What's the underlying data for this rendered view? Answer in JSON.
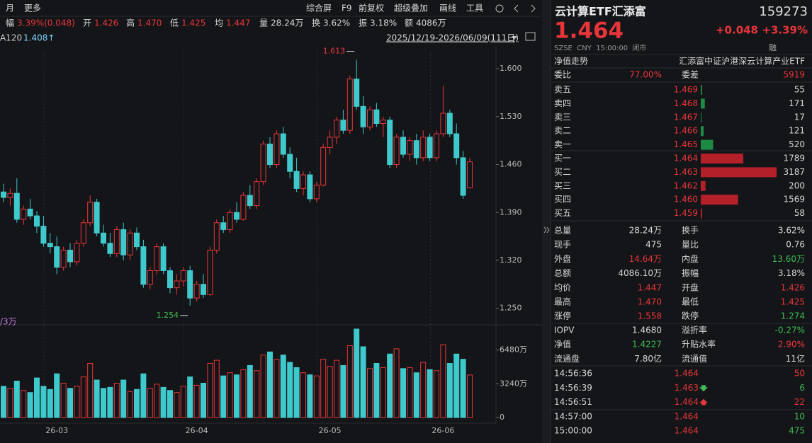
{
  "toolbar": {
    "left": [
      "月",
      "更多"
    ],
    "right": [
      "综合屏",
      "F9",
      "前复权",
      "超级叠加",
      "画线",
      "工具"
    ]
  },
  "quote_line": [
    {
      "label": "幅",
      "value": "3.39%(0.048)",
      "color": "#e8353a"
    },
    {
      "label": "开",
      "value": "1.426",
      "color": "#e8353a"
    },
    {
      "label": "高",
      "value": "1.470",
      "color": "#e8353a"
    },
    {
      "label": "低",
      "value": "1.425",
      "color": "#e8353a"
    },
    {
      "label": "均",
      "value": "1.447",
      "color": "#e8353a"
    },
    {
      "label": "量",
      "value": "28.24万",
      "color": "#d8d8d8"
    },
    {
      "label": "换",
      "value": "3.62%",
      "color": "#d8d8d8"
    },
    {
      "label": "振",
      "value": "3.18%",
      "color": "#d8d8d8"
    },
    {
      "label": "额",
      "value": "4086万",
      "color": "#d8d8d8"
    }
  ],
  "ma_label": {
    "name": "A120",
    "value": "1.408↑"
  },
  "range": "2025/12/19-2026/06/09(111日)",
  "volume_label": "/3万",
  "chart_data": {
    "type": "candlestick",
    "up_color": "#e8353a",
    "down_color": "#3ec9cc",
    "grid": false,
    "categories": [
      null,
      null,
      null,
      null,
      null,
      null,
      null,
      null,
      "26-03",
      null,
      null,
      null,
      null,
      null,
      null,
      null,
      null,
      null,
      null,
      null,
      null,
      null,
      null,
      null,
      null,
      null,
      null,
      null,
      null,
      "26-04",
      null,
      null,
      null,
      null,
      null,
      null,
      null,
      null,
      null,
      null,
      null,
      null,
      null,
      null,
      null,
      null,
      null,
      null,
      null,
      "26-05",
      null,
      null,
      null,
      null,
      null,
      null,
      null,
      null,
      null,
      null,
      null,
      null,
      null,
      null,
      null,
      null,
      "26-06",
      null,
      null,
      null,
      null
    ],
    "ohlc": [
      [
        1.42,
        1.432,
        1.405,
        1.412
      ],
      [
        1.412,
        1.425,
        1.4,
        1.418
      ],
      [
        1.418,
        1.44,
        1.375,
        1.38
      ],
      [
        1.38,
        1.4,
        1.372,
        1.395
      ],
      [
        1.395,
        1.41,
        1.38,
        1.385
      ],
      [
        1.385,
        1.392,
        1.36,
        1.37
      ],
      [
        1.37,
        1.385,
        1.34,
        1.345
      ],
      [
        1.345,
        1.36,
        1.33,
        1.34
      ],
      [
        1.34,
        1.355,
        1.3,
        1.31
      ],
      [
        1.31,
        1.34,
        1.305,
        1.335
      ],
      [
        1.335,
        1.345,
        1.31,
        1.318
      ],
      [
        1.318,
        1.35,
        1.312,
        1.345
      ],
      [
        1.345,
        1.38,
        1.34,
        1.375
      ],
      [
        1.375,
        1.415,
        1.37,
        1.405
      ],
      [
        1.405,
        1.41,
        1.355,
        1.36
      ],
      [
        1.36,
        1.372,
        1.34,
        1.345
      ],
      [
        1.345,
        1.36,
        1.325,
        1.33
      ],
      [
        1.33,
        1.37,
        1.325,
        1.365
      ],
      [
        1.365,
        1.375,
        1.32,
        1.328
      ],
      [
        1.328,
        1.365,
        1.32,
        1.36
      ],
      [
        1.36,
        1.368,
        1.335,
        1.34
      ],
      [
        1.34,
        1.35,
        1.28,
        1.285
      ],
      [
        1.285,
        1.31,
        1.278,
        1.305
      ],
      [
        1.305,
        1.345,
        1.3,
        1.34
      ],
      [
        1.34,
        1.345,
        1.3,
        1.305
      ],
      [
        1.305,
        1.31,
        1.272,
        1.28
      ],
      [
        1.28,
        1.3,
        1.27,
        1.29
      ],
      [
        1.29,
        1.31,
        1.282,
        1.305
      ],
      [
        1.305,
        1.312,
        1.254,
        1.265
      ],
      [
        1.265,
        1.29,
        1.26,
        1.285
      ],
      [
        1.285,
        1.3,
        1.265,
        1.27
      ],
      [
        1.27,
        1.34,
        1.268,
        1.335
      ],
      [
        1.335,
        1.38,
        1.33,
        1.375
      ],
      [
        1.375,
        1.385,
        1.36,
        1.365
      ],
      [
        1.365,
        1.395,
        1.36,
        1.39
      ],
      [
        1.39,
        1.405,
        1.375,
        1.38
      ],
      [
        1.38,
        1.42,
        1.378,
        1.415
      ],
      [
        1.415,
        1.43,
        1.395,
        1.4
      ],
      [
        1.4,
        1.44,
        1.395,
        1.435
      ],
      [
        1.435,
        1.495,
        1.43,
        1.49
      ],
      [
        1.49,
        1.5,
        1.455,
        1.46
      ],
      [
        1.46,
        1.51,
        1.455,
        1.505
      ],
      [
        1.505,
        1.515,
        1.47,
        1.475
      ],
      [
        1.475,
        1.485,
        1.44,
        1.45
      ],
      [
        1.45,
        1.47,
        1.42,
        1.425
      ],
      [
        1.425,
        1.45,
        1.415,
        1.445
      ],
      [
        1.445,
        1.45,
        1.405,
        1.41
      ],
      [
        1.41,
        1.435,
        1.405,
        1.43
      ],
      [
        1.43,
        1.49,
        1.428,
        1.485
      ],
      [
        1.485,
        1.51,
        1.475,
        1.5
      ],
      [
        1.5,
        1.53,
        1.49,
        1.525
      ],
      [
        1.525,
        1.54,
        1.505,
        1.51
      ],
      [
        1.51,
        1.59,
        1.505,
        1.585
      ],
      [
        1.585,
        1.613,
        1.54,
        1.545
      ],
      [
        1.545,
        1.56,
        1.505,
        1.515
      ],
      [
        1.515,
        1.545,
        1.51,
        1.54
      ],
      [
        1.54,
        1.55,
        1.515,
        1.52
      ],
      [
        1.52,
        1.53,
        1.5,
        1.525
      ],
      [
        1.525,
        1.53,
        1.455,
        1.46
      ],
      [
        1.46,
        1.505,
        1.455,
        1.5
      ],
      [
        1.5,
        1.51,
        1.47,
        1.475
      ],
      [
        1.475,
        1.5,
        1.465,
        1.495
      ],
      [
        1.495,
        1.505,
        1.46,
        1.47
      ],
      [
        1.47,
        1.51,
        1.465,
        1.5
      ],
      [
        1.5,
        1.505,
        1.465,
        1.47
      ],
      [
        1.47,
        1.51,
        1.465,
        1.505
      ],
      [
        1.505,
        1.575,
        1.5,
        1.535
      ],
      [
        1.535,
        1.54,
        1.5,
        1.505
      ],
      [
        1.505,
        1.52,
        1.46,
        1.47
      ],
      [
        1.47,
        1.48,
        1.41,
        1.415
      ],
      [
        1.426,
        1.47,
        1.425,
        1.464
      ]
    ],
    "ylim": [
      1.23,
      1.626
    ],
    "yticks": [
      {
        "value": 1.6,
        "label": "1.600"
      },
      {
        "value": 1.53,
        "label": "1.530"
      },
      {
        "value": 1.46,
        "label": "1.460"
      },
      {
        "value": 1.39,
        "label": "1.390"
      },
      {
        "value": 1.32,
        "label": "1.320"
      },
      {
        "value": 1.25,
        "label": "1.250"
      }
    ],
    "annotations": [
      1.613,
      1.254
    ],
    "volume": {
      "values": [
        3000,
        2800,
        3500,
        2600,
        2400,
        3800,
        3000,
        2700,
        4200,
        3300,
        2800,
        3000,
        3900,
        5200,
        3600,
        2800,
        2900,
        3300,
        3600,
        2500,
        2700,
        4200,
        2800,
        3200,
        2900,
        2600,
        2400,
        3000,
        3900,
        3100,
        3300,
        5200,
        5500,
        4000,
        4300,
        4100,
        4600,
        5000,
        4500,
        6000,
        6300,
        5600,
        6000,
        5300,
        4800,
        4300,
        4100,
        4000,
        5600,
        4900,
        5500,
        5000,
        6900,
        8500,
        6800,
        4700,
        5200,
        4800,
        6100,
        6600,
        4700,
        4800,
        4300,
        5300,
        4600,
        4500,
        7000,
        5200,
        6100,
        5600,
        4086
      ],
      "ylim": [
        0,
        8700
      ],
      "yticks": [
        0,
        {
          "value": 3240,
          "label": "3240万"
        },
        {
          "value": 6480,
          "label": "6480万"
        }
      ]
    }
  },
  "panel": {
    "name": "云计算ETF汇添富",
    "code": "159273",
    "price": "1.464",
    "change": "+0.048",
    "change_pct": "+3.39%",
    "exchange_line": "SZSE  CNY  15:00:00  闭市",
    "margin": "融",
    "nav_tab": "净值走势",
    "full_name": "汇添富中证沪港深云计算产业ETF",
    "weibi": [
      "委比",
      "77.00%",
      "委差",
      "5919"
    ],
    "asks": [
      {
        "label": "卖五",
        "price": "1.469",
        "volume": 55
      },
      {
        "label": "卖四",
        "price": "1.468",
        "volume": 171
      },
      {
        "label": "卖三",
        "price": "1.467",
        "volume": 17
      },
      {
        "label": "卖二",
        "price": "1.466",
        "volume": 121
      },
      {
        "label": "卖一",
        "price": "1.465",
        "volume": 520
      }
    ],
    "bids": [
      {
        "label": "买一",
        "price": "1.464",
        "volume": 1789
      },
      {
        "label": "买二",
        "price": "1.463",
        "volume": 3187
      },
      {
        "label": "买三",
        "price": "1.462",
        "volume": 200
      },
      {
        "label": "买四",
        "price": "1.460",
        "volume": 1569
      },
      {
        "label": "买五",
        "price": "1.459",
        "volume": 58
      }
    ],
    "ask_color": "#1f8a43",
    "bid_color": "#b3202a",
    "stats": [
      [
        {
          "text": "总量"
        },
        {
          "text": "28.24万"
        },
        {
          "text": "换手"
        },
        {
          "text": "3.62%"
        }
      ],
      [
        {
          "text": "现手"
        },
        {
          "text": "475"
        },
        {
          "text": "量比"
        },
        {
          "text": "0.76"
        }
      ],
      [
        {
          "text": "外盘"
        },
        {
          "text": "14.64万",
          "color": "#e8353a"
        },
        {
          "text": "内盘"
        },
        {
          "text": "13.60万",
          "color": "#3cba54"
        }
      ],
      [
        {
          "text": "总额"
        },
        {
          "text": "4086.10万"
        },
        {
          "text": "振幅"
        },
        {
          "text": "3.18%"
        }
      ],
      [
        {
          "text": "均价"
        },
        {
          "text": "1.447",
          "color": "#e8353a"
        },
        {
          "text": "开盘"
        },
        {
          "text": "1.426",
          "color": "#e8353a"
        }
      ],
      [
        {
          "text": "最高"
        },
        {
          "text": "1.470",
          "color": "#e8353a"
        },
        {
          "text": "最低"
        },
        {
          "text": "1.425",
          "color": "#e8353a"
        }
      ],
      [
        {
          "text": "涨停"
        },
        {
          "text": "1.558",
          "color": "#e8353a"
        },
        {
          "text": "跌停"
        },
        {
          "text": "1.274",
          "color": "#3cba54"
        }
      ]
    ],
    "iopv": [
      [
        {
          "text": "IOPV"
        },
        {
          "text": "1.4680"
        },
        {
          "text": "溢折率"
        },
        {
          "text": "-0.27%",
          "color": "#3cba54"
        }
      ],
      [
        {
          "text": "净值"
        },
        {
          "text": "1.4227",
          "color": "#3cba54"
        },
        {
          "text": "升贴水率"
        },
        {
          "text": "2.90%",
          "color": "#e8353a"
        }
      ],
      [
        {
          "text": "流通盘"
        },
        {
          "text": "7.80亿"
        },
        {
          "text": "流通值"
        },
        {
          "text": "11亿"
        }
      ]
    ],
    "trades": [
      {
        "time": "14:56:36",
        "price": "1.464",
        "volume": "50",
        "color": "#e8353a",
        "dir": "none"
      },
      {
        "time": "14:56:39",
        "price": "1.463",
        "volume": "6",
        "color": "#3cba54",
        "dir": "down"
      },
      {
        "time": "14:56:51",
        "price": "1.464",
        "volume": "22",
        "color": "#e8353a",
        "dir": "up"
      },
      {
        "time": "14:57:00",
        "price": "1.464",
        "volume": "10",
        "color": "#3cba54",
        "dir": "none"
      },
      {
        "time": "15:00:00",
        "price": "1.464",
        "volume": "475",
        "color": "#3cba54",
        "dir": "none"
      }
    ]
  }
}
